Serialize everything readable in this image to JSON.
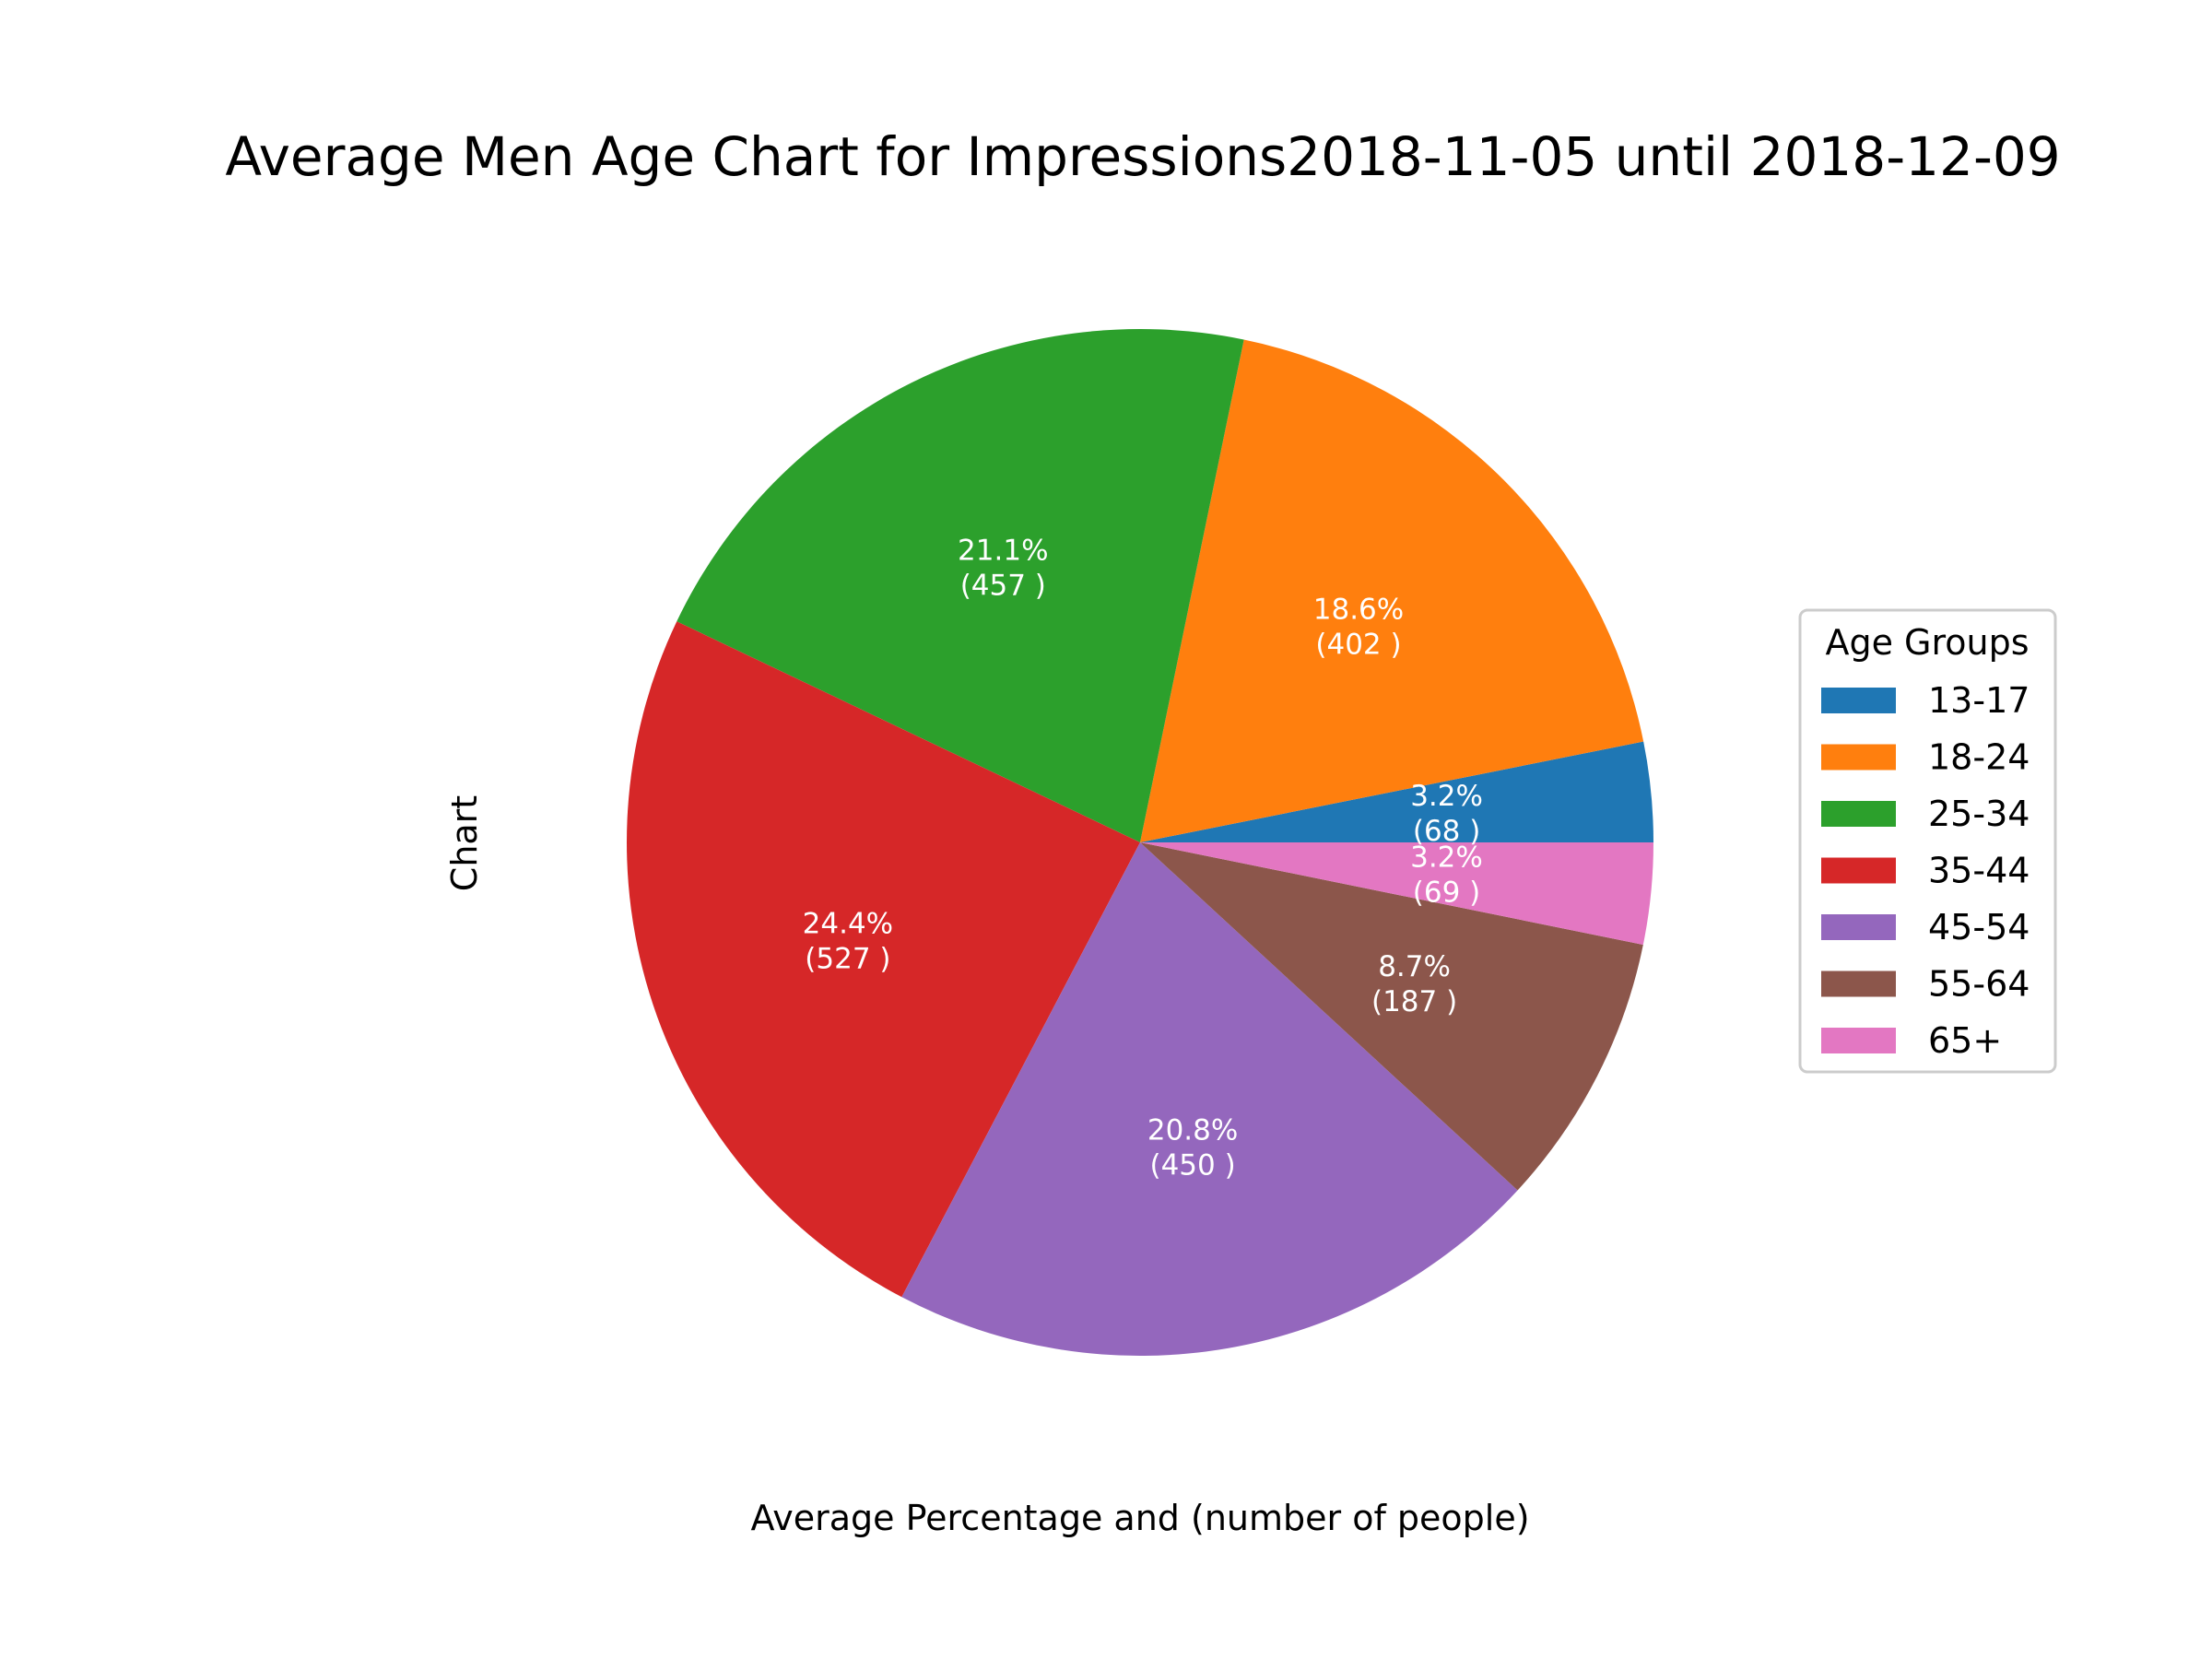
{
  "chart_data": {
    "type": "pie",
    "title": "Average Men Age Chart for Impressions2018-11-05 until 2018-12-09",
    "xlabel": "Average Percentage and (number of people)",
    "ylabel": "Chart",
    "legend": {
      "title": "Age Groups",
      "placement": "right"
    },
    "start_angle_degrees": 0,
    "direction": "counterclockwise",
    "slices": [
      {
        "label": "13-17",
        "value": 68,
        "percent": "3.2%",
        "count_text": "(68 )",
        "color": "#1f77b4"
      },
      {
        "label": "18-24",
        "value": 402,
        "percent": "18.6%",
        "count_text": "(402 )",
        "color": "#ff7f0e"
      },
      {
        "label": "25-34",
        "value": 457,
        "percent": "21.1%",
        "count_text": "(457 )",
        "color": "#2ca02c"
      },
      {
        "label": "35-44",
        "value": 527,
        "percent": "24.4%",
        "count_text": "(527 )",
        "color": "#d62728"
      },
      {
        "label": "45-54",
        "value": 450,
        "percent": "20.8%",
        "count_text": "(450 )",
        "color": "#9467bd"
      },
      {
        "label": "55-64",
        "value": 187,
        "percent": "8.7%",
        "count_text": "(187 )",
        "color": "#8c564b"
      },
      {
        "label": "65+",
        "value": 69,
        "percent": "3.2%",
        "count_text": "(69 )",
        "color": "#e377c2"
      }
    ]
  }
}
